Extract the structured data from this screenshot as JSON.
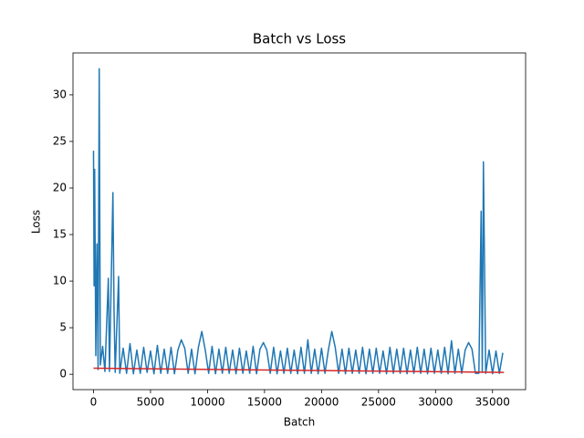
{
  "chart_data": {
    "type": "line",
    "title": "Batch vs Loss",
    "x_label": "Batch",
    "y_label": "Loss",
    "xlim": [
      -1800,
      37900
    ],
    "ylim": [
      -1.65,
      34.5
    ],
    "xticks": [
      0,
      5000,
      10000,
      15000,
      20000,
      25000,
      30000,
      35000
    ],
    "yticks": [
      0,
      5,
      10,
      15,
      20,
      25,
      30
    ],
    "grid": false,
    "series": [
      {
        "color": "#1f77b4",
        "x": [
          0,
          50,
          100,
          200,
          300,
          400,
          500,
          600,
          800,
          1000,
          1300,
          1400,
          1700,
          1800,
          1900,
          2200,
          2300,
          2600,
          2900,
          3200,
          3500,
          3800,
          4100,
          4400,
          4700,
          5000,
          5300,
          5600,
          5900,
          6200,
          6500,
          6800,
          7100,
          7400,
          7700,
          8000,
          8300,
          8600,
          8900,
          9200,
          9500,
          9800,
          10100,
          10400,
          10700,
          11000,
          11300,
          11600,
          11900,
          12200,
          12500,
          12800,
          13100,
          13400,
          13700,
          14000,
          14300,
          14600,
          14900,
          15200,
          15500,
          15800,
          16100,
          16400,
          16700,
          17000,
          17300,
          17600,
          17900,
          18200,
          18500,
          18800,
          19100,
          19400,
          19700,
          20000,
          20300,
          20600,
          20900,
          21200,
          21500,
          21800,
          22100,
          22400,
          22700,
          23000,
          23300,
          23600,
          23900,
          24200,
          24500,
          24800,
          25100,
          25400,
          25700,
          26000,
          26300,
          26600,
          26900,
          27200,
          27500,
          27800,
          28100,
          28400,
          28700,
          29000,
          29300,
          29600,
          29900,
          30200,
          30500,
          30800,
          31100,
          31400,
          31700,
          32000,
          32300,
          32600,
          32900,
          33200,
          33500,
          33800,
          34000,
          34100,
          34200,
          34400,
          34700,
          35000,
          35300,
          35600,
          35900
        ],
        "values": [
          24,
          9.5,
          22,
          2,
          14,
          0.5,
          32.8,
          1,
          3,
          0.3,
          10.3,
          0.3,
          19.5,
          6.8,
          0.2,
          10.5,
          0.1,
          2.8,
          0.1,
          3.3,
          0.05,
          2.6,
          0.1,
          2.9,
          0.2,
          2.5,
          0.05,
          3.1,
          0.1,
          2.7,
          0.1,
          2.9,
          0.05,
          2.6,
          3.7,
          2.8,
          0.1,
          2.7,
          0.05,
          2.9,
          4.6,
          2.6,
          0.1,
          3.0,
          0.05,
          2.7,
          0.1,
          2.9,
          0.1,
          2.6,
          0.05,
          2.8,
          0.1,
          2.5,
          0.1,
          3.0,
          0.05,
          2.7,
          3.4,
          2.6,
          0.1,
          2.9,
          0.05,
          2.5,
          0.1,
          2.8,
          0.1,
          2.6,
          0.05,
          2.9,
          0.1,
          3.7,
          0.1,
          2.7,
          0.05,
          2.8,
          0.1,
          2.6,
          4.6,
          2.9,
          0.1,
          2.7,
          0.05,
          2.8,
          0.1,
          2.6,
          0.1,
          2.9,
          0.05,
          2.7,
          0.1,
          2.8,
          0.1,
          2.5,
          0.05,
          2.9,
          0.1,
          2.7,
          0.1,
          2.8,
          0.05,
          2.6,
          0.1,
          2.9,
          0.1,
          2.7,
          0.05,
          2.8,
          0.1,
          2.6,
          0.1,
          2.9,
          0.05,
          3.6,
          0.1,
          2.7,
          0.1,
          2.6,
          3.4,
          2.7,
          0.1,
          0.1,
          17.5,
          0.2,
          22.8,
          0.1,
          2.6,
          0.05,
          2.5,
          0.1,
          2.3
        ]
      },
      {
        "color": "#d62728",
        "x": [
          0,
          36000
        ],
        "values": [
          0.65,
          0.2
        ]
      }
    ]
  }
}
